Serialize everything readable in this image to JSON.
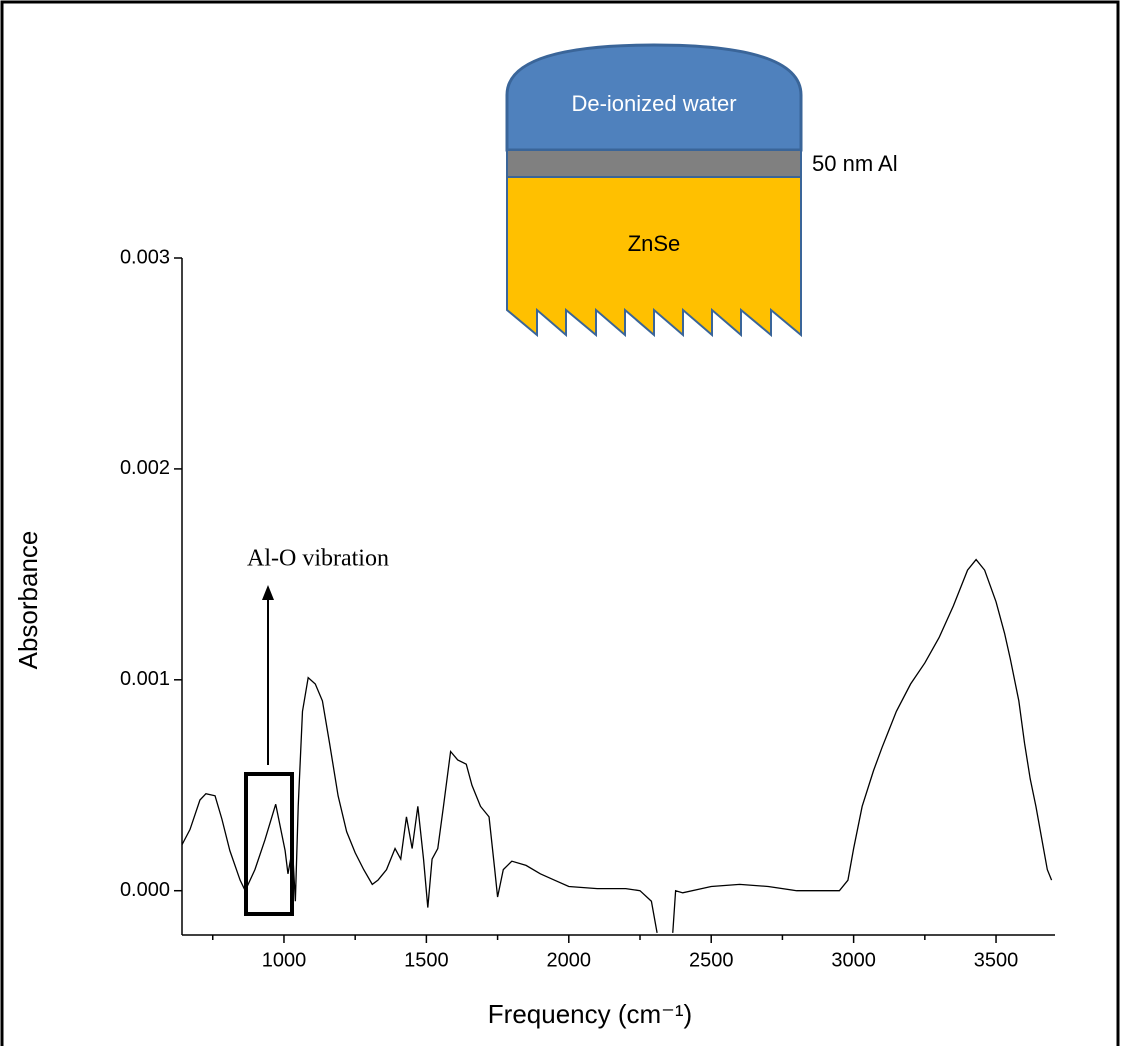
{
  "chart_data": {
    "type": "line",
    "x_label": "Frequency (cm⁻¹)",
    "y_label": "Absorbance",
    "annotation": "Al-O vibration",
    "inset_labels": [
      "De-ionized water",
      "50 nm Al",
      "ZnSe"
    ],
    "xlim": [
      642,
      3707
    ],
    "ylim": [
      -0.00021,
      0.003
    ],
    "xticks": [
      1000,
      1500,
      2000,
      2500,
      3000,
      3500
    ],
    "xminor_ticks": [
      750,
      1250,
      1750,
      2250,
      2750,
      3250
    ],
    "yticks": [
      {
        "value": 0,
        "label": "0.000"
      },
      0.001,
      0.002,
      0.003
    ],
    "series": [
      {
        "color": "#000000",
        "x": [
          642,
          670,
          705,
          726,
          758,
          782,
          810,
          846,
          864,
          898,
          933,
          971,
          1004,
          1014,
          1030,
          1040,
          1050,
          1065,
          1085,
          1110,
          1135,
          1160,
          1190,
          1220,
          1250,
          1280,
          1310,
          1330,
          1360,
          1390,
          1410,
          1430,
          1450,
          1470,
          1490,
          1505,
          1520,
          1540,
          1560,
          1585,
          1610,
          1640,
          1660,
          1690,
          1720,
          1740,
          1750,
          1770,
          1800,
          1850,
          1900,
          1950,
          2000,
          2100,
          2200,
          2250,
          2290,
          2310,
          2340,
          2365,
          2375,
          2400,
          2500,
          2600,
          2700,
          2800,
          2900,
          2950,
          2980,
          3000,
          3030,
          3070,
          3100,
          3150,
          3200,
          3250,
          3300,
          3350,
          3400,
          3430,
          3460,
          3500,
          3530,
          3550,
          3580,
          3600,
          3620,
          3640,
          3660,
          3680,
          3695
        ],
        "values": [
          0.000218,
          0.00029,
          0.00043,
          0.00046,
          0.00045,
          0.00034,
          0.00019,
          5e-05,
          0.0,
          0.0001,
          0.00024,
          0.00041,
          0.00019,
          8e-05,
          0.0002,
          -5e-05,
          0.0004,
          0.00085,
          0.00101,
          0.00098,
          0.0009,
          0.0007,
          0.00045,
          0.00028,
          0.00018,
          0.0001,
          3e-05,
          5e-05,
          0.0001,
          0.0002,
          0.00015,
          0.00035,
          0.0002,
          0.0004,
          0.00015,
          -8e-05,
          0.00015,
          0.0002,
          0.0004,
          0.00066,
          0.00062,
          0.0006,
          0.0005,
          0.0004,
          0.00035,
          0.0001,
          -3e-05,
          0.0001,
          0.00014,
          0.00012,
          8e-05,
          5e-05,
          2e-05,
          1e-05,
          1e-05,
          0.0,
          -5e-05,
          -0.0002,
          null,
          -0.0002,
          0.0,
          -1e-05,
          2e-05,
          3e-05,
          2e-05,
          0.0,
          0.0,
          0.0,
          5e-05,
          0.0002,
          0.0004,
          0.00057,
          0.00068,
          0.00085,
          0.00098,
          0.00108,
          0.0012,
          0.00135,
          0.00152,
          0.00157,
          0.00152,
          0.00137,
          0.00122,
          0.0011,
          0.0009,
          0.0007,
          0.00053,
          0.0004,
          0.00025,
          0.0001,
          5e-05
        ]
      }
    ]
  }
}
